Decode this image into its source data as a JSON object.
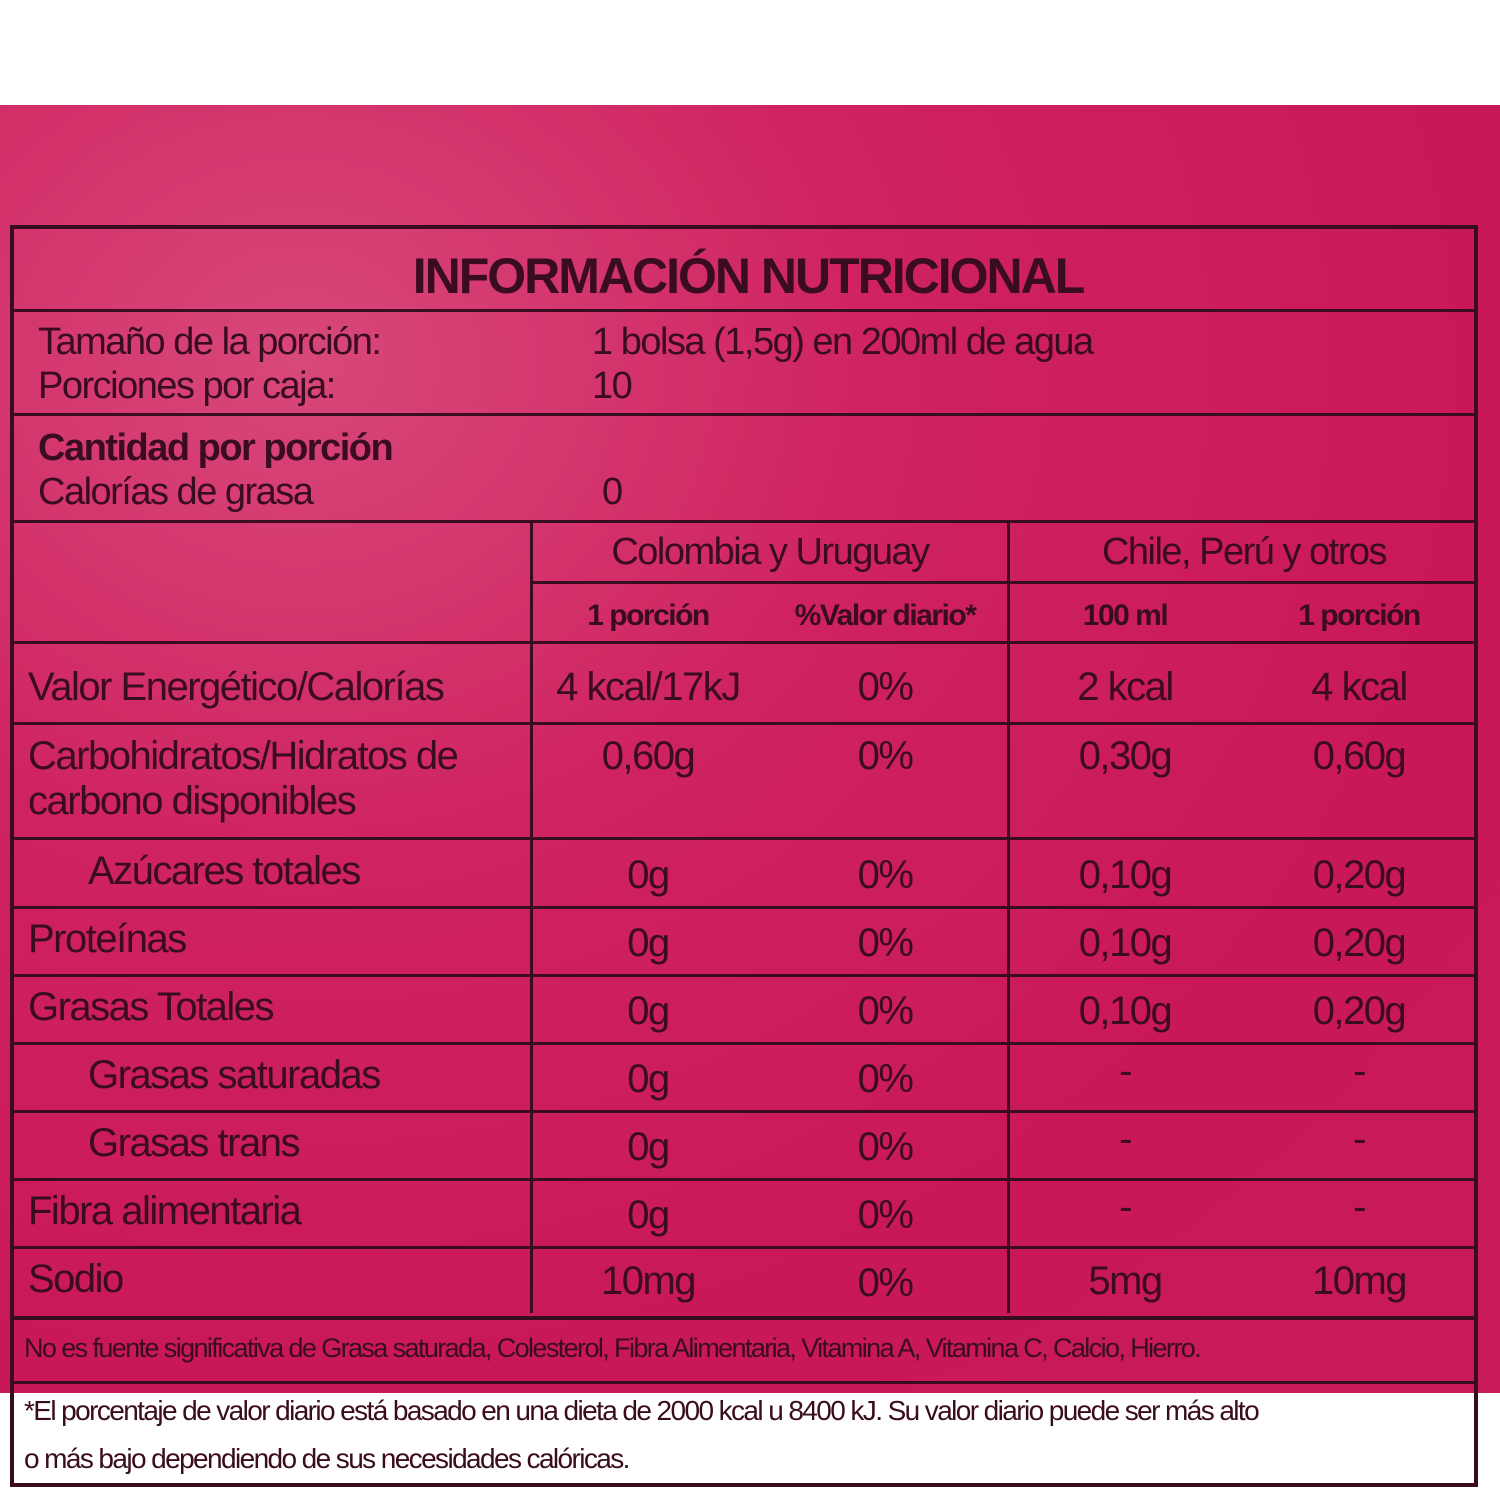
{
  "title": "INFORMACIÓN NUTRICIONAL",
  "serving": {
    "size_label": "Tamaño de la porción:",
    "size_value": "1 bolsa (1,5g) en 200ml de agua",
    "per_box_label": "Porciones por caja:",
    "per_box_value": "10"
  },
  "amount": {
    "heading": "Cantidad por porción",
    "fat_calories_label": "Calorías de grasa",
    "fat_calories_value": "0"
  },
  "regions": [
    "Colombia y Uruguay",
    "Chile, Perú y otros"
  ],
  "columns": [
    "1 porción",
    "%Valor diario*",
    "100 ml",
    "1 porción"
  ],
  "rows": [
    {
      "name": "Valor Energético/Calorías",
      "values": [
        "4 kcal/17kJ",
        "0%",
        "2 kcal",
        "4 kcal"
      ]
    },
    {
      "name": "Carbohidratos/Hidratos de",
      "name2": "carbono disponibles",
      "values": [
        "0,60g",
        "0%",
        "0,30g",
        "0,60g"
      ]
    },
    {
      "name": "Azúcares totales",
      "values": [
        "0g",
        "0%",
        "0,10g",
        "0,20g"
      ]
    },
    {
      "name": "Proteínas",
      "values": [
        "0g",
        "0%",
        "0,10g",
        "0,20g"
      ]
    },
    {
      "name": "Grasas Totales",
      "values": [
        "0g",
        "0%",
        "0,10g",
        "0,20g"
      ]
    },
    {
      "name": "Grasas saturadas",
      "values": [
        "0g",
        "0%",
        "-",
        "-"
      ]
    },
    {
      "name": "Grasas trans",
      "values": [
        "0g",
        "0%",
        "-",
        "-"
      ]
    },
    {
      "name": "Fibra alimentaria",
      "values": [
        "0g",
        "0%",
        "-",
        "-"
      ]
    },
    {
      "name": "Sodio",
      "values": [
        "10mg",
        "0%",
        "5mg",
        "10mg"
      ]
    }
  ],
  "footnote_1": "No es fuente significativa de Grasa saturada, Colesterol, Fibra Alimentaria, Vitamina A, Vitamina C, Calcio, Hierro.",
  "footnote_2_line1": "*El porcentaje de valor diario está basado en una dieta de 2000 kcal u 8400 kJ. Su valor diario puede ser más alto",
  "footnote_2_line2": "o más bajo dependiendo de sus necesidades calóricas.",
  "colors": {
    "background": "#c9185a",
    "ink": "#3a0c1f"
  }
}
